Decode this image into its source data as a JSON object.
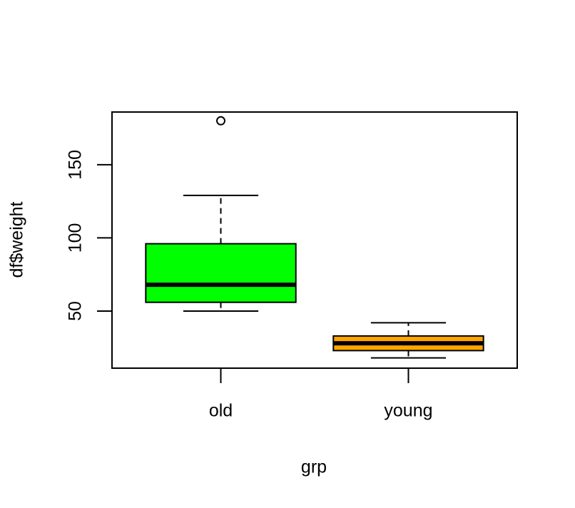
{
  "chart_data": {
    "type": "box",
    "xlabel": "grp",
    "ylabel": "df$weight",
    "categories": [
      "old",
      "young"
    ],
    "colors": [
      "#00ff00",
      "#ffa500"
    ],
    "boxes": [
      {
        "min": 50,
        "q1": 56,
        "median": 68,
        "q3": 96,
        "max": 129,
        "outliers": [
          180
        ]
      },
      {
        "min": 18,
        "q1": 23,
        "median": 28,
        "q3": 33,
        "max": 42,
        "outliers": []
      }
    ],
    "ylim": [
      11,
      186
    ],
    "yticks": [
      50,
      100,
      150
    ]
  }
}
